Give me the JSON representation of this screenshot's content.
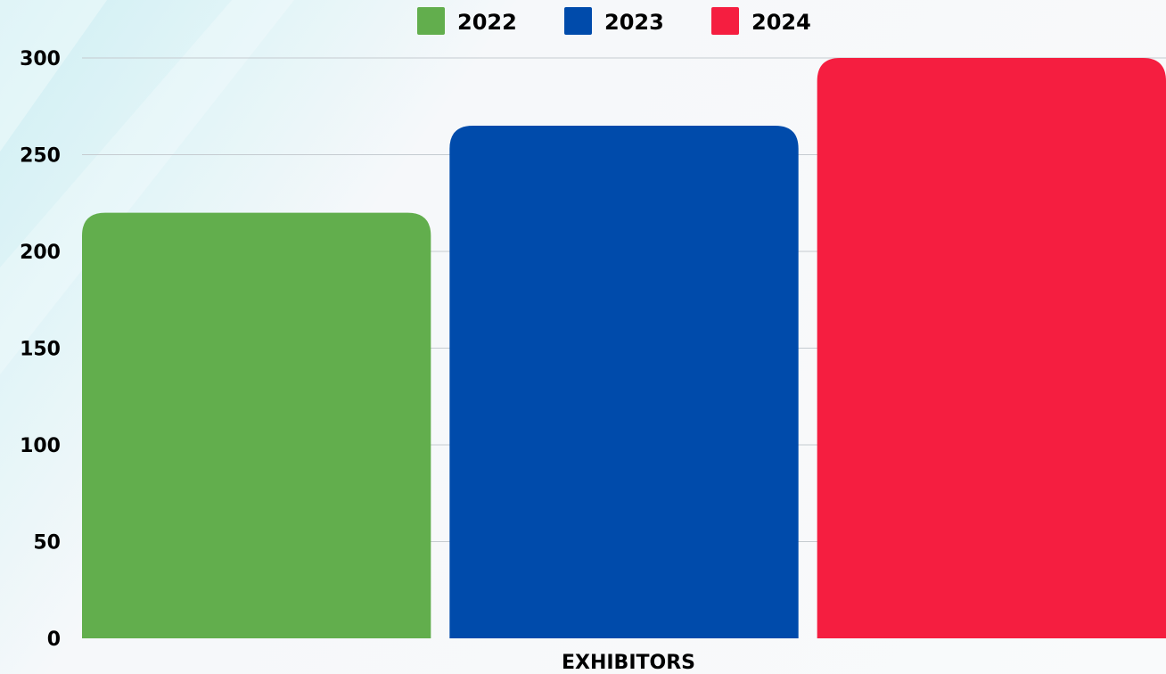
{
  "chart_data": {
    "type": "bar",
    "categories": [
      "EXHIBITORS"
    ],
    "series": [
      {
        "name": "2022",
        "values": [
          220
        ],
        "color": "#62ae4d"
      },
      {
        "name": "2023",
        "values": [
          265
        ],
        "color": "#004bab"
      },
      {
        "name": "2024",
        "values": [
          300
        ],
        "color": "#f51e40"
      }
    ],
    "title": "",
    "xlabel": "",
    "ylabel": "",
    "ylim": [
      0,
      300
    ],
    "yticks": [
      "0",
      "50",
      "100",
      "150",
      "200",
      "250",
      "300"
    ],
    "grid": true,
    "legend_position": "top"
  }
}
